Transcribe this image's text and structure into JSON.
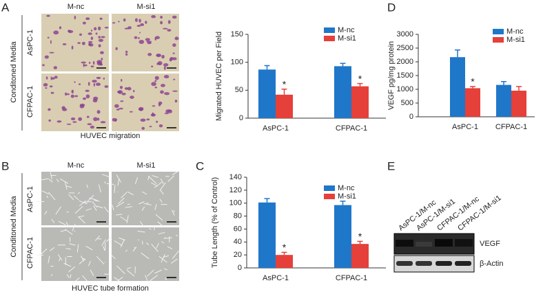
{
  "panel_letters": [
    "A",
    "B",
    "C",
    "D",
    "E"
  ],
  "migration": {
    "columns": [
      "M-nc",
      "M-si1"
    ],
    "rows": [
      "AsPC-1",
      "CFPAC-1"
    ],
    "side_label": "Conditoned Media",
    "caption": "HUVEC migration"
  },
  "tube_formation": {
    "columns": [
      "M-nc",
      "M-si1"
    ],
    "rows": [
      "AsPC-1",
      "CFPAC-1"
    ],
    "side_label": "Conditoned Media",
    "caption": "HUVEC tube formation"
  },
  "western_blot": {
    "lanes": [
      "AsPC-1/M-nc",
      "AsPC-1/M-si1",
      "CFPAC-1/M-nc",
      "CFPAC-1/M-si1"
    ],
    "bands": [
      "VEGF",
      "β-Actin"
    ]
  },
  "chart_data": [
    {
      "type": "bar",
      "ylabel": "Migrated HUVEC per Field",
      "categories": [
        "AsPC-1",
        "CFPAC-1"
      ],
      "series": [
        {
          "name": "M-nc",
          "color": "#1f77c9",
          "values": [
            87,
            93
          ],
          "errors": [
            7,
            5
          ]
        },
        {
          "name": "M-si1",
          "color": "#e5403a",
          "values": [
            42,
            57
          ],
          "errors": [
            10,
            5
          ],
          "significance": [
            "*",
            "*"
          ]
        }
      ],
      "ylim": [
        0,
        150
      ],
      "yticks": [
        0,
        50,
        100,
        150
      ],
      "legend": "upper right"
    },
    {
      "type": "bar",
      "ylabel": "Tube Length (% of Control)",
      "categories": [
        "AsPC-1",
        "CFPAC-1"
      ],
      "series": [
        {
          "name": "M-nc",
          "color": "#1f77c9",
          "values": [
            101,
            97
          ],
          "errors": [
            6,
            6
          ]
        },
        {
          "name": "M-si1",
          "color": "#e5403a",
          "values": [
            20,
            37
          ],
          "errors": [
            4,
            4
          ],
          "significance": [
            "*",
            "*"
          ]
        }
      ],
      "ylim": [
        0,
        140
      ],
      "yticks": [
        0,
        20,
        40,
        60,
        80,
        100,
        120,
        140
      ],
      "legend": "upper right"
    },
    {
      "type": "bar",
      "ylabel": "VEGF pg/mg protein",
      "categories": [
        "AsPC-1",
        "CFPAC-1"
      ],
      "series": [
        {
          "name": "M-nc",
          "color": "#1f77c9",
          "values": [
            2170,
            1160
          ],
          "errors": [
            260,
            120
          ]
        },
        {
          "name": "M-si1",
          "color": "#e5403a",
          "values": [
            1040,
            950
          ],
          "errors": [
            60,
            150
          ],
          "significance": [
            "*",
            null
          ]
        }
      ],
      "ylim": [
        0,
        3000
      ],
      "yticks": [
        0,
        500,
        1000,
        1500,
        2000,
        2500,
        3000
      ],
      "legend": "upper right"
    }
  ]
}
